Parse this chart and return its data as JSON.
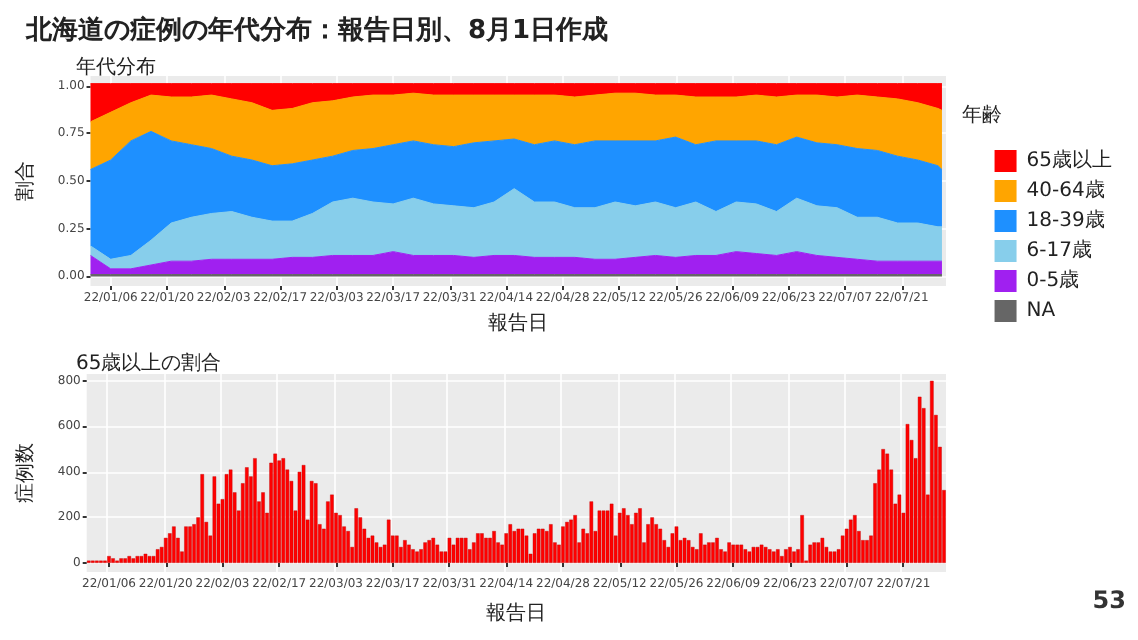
{
  "chart_data": [
    {
      "type": "area",
      "title": "北海道の症例の年代分布：報告日別、8月1日作成",
      "subtitle": "年代分布",
      "xlabel": "報告日",
      "ylabel": "割合",
      "legend_title": "年齢",
      "stacked": true,
      "grid": true,
      "legend": "right",
      "x": [
        "--01-01",
        "--01-06",
        "--01-11",
        "--01-16",
        "--01-21",
        "--01-26",
        "--01-31",
        "--02-05",
        "--02-10",
        "--02-15",
        "--02-20",
        "--02-25",
        "--03-02",
        "--03-07",
        "--03-12",
        "--03-17",
        "--03-22",
        "--03-27",
        "--04-01",
        "--04-06",
        "--04-11",
        "--04-16",
        "--04-21",
        "--04-26",
        "--05-01",
        "--05-06",
        "--05-11",
        "--05-16",
        "--05-21",
        "--05-26",
        "--05-31",
        "--06-05",
        "--06-10",
        "--06-15",
        "--06-20",
        "--06-25",
        "--06-30",
        "--07-05",
        "--07-10",
        "--07-15",
        "--07-20",
        "--07-25",
        "--07-30",
        "--07-31"
      ],
      "xlim": [
        "--01-01",
        "--08-01"
      ],
      "xticks": [
        {
          "value": "--01-06",
          "label": "22/01/06"
        },
        {
          "value": "--01-20",
          "label": "22/01/20"
        },
        {
          "value": "--02-03",
          "label": "22/02/03"
        },
        {
          "value": "--02-17",
          "label": "22/02/17"
        },
        {
          "value": "--03-03",
          "label": "22/03/03"
        },
        {
          "value": "--03-17",
          "label": "22/03/17"
        },
        {
          "value": "--03-31",
          "label": "22/03/31"
        },
        {
          "value": "--04-14",
          "label": "22/04/14"
        },
        {
          "value": "--04-28",
          "label": "22/04/28"
        },
        {
          "value": "--05-12",
          "label": "22/05/12"
        },
        {
          "value": "--05-26",
          "label": "22/05/26"
        },
        {
          "value": "--06-09",
          "label": "22/06/09"
        },
        {
          "value": "--06-23",
          "label": "22/06/23"
        },
        {
          "value": "--07-07",
          "label": "22/07/07"
        },
        {
          "value": "--07-21",
          "label": "22/07/21"
        }
      ],
      "ylim": [
        -0.05,
        1.05
      ],
      "yticks": [
        {
          "value": 0,
          "label": "0.00"
        },
        {
          "value": 0.25,
          "label": "0.25"
        },
        {
          "value": 0.5,
          "label": "0.50"
        },
        {
          "value": 0.75,
          "label": "0.75"
        },
        {
          "value": 1,
          "label": "1.00"
        }
      ],
      "series": [
        {
          "name": "NA",
          "color": "#666666",
          "values": [
            0.01,
            0.01,
            0.01,
            0.01,
            0.01,
            0.01,
            0.01,
            0.01,
            0.01,
            0.01,
            0.01,
            0.01,
            0.01,
            0.01,
            0.01,
            0.01,
            0.01,
            0.01,
            0.01,
            0.01,
            0.01,
            0.01,
            0.01,
            0.01,
            0.01,
            0.01,
            0.01,
            0.01,
            0.01,
            0.01,
            0.01,
            0.01,
            0.01,
            0.01,
            0.01,
            0.01,
            0.01,
            0.01,
            0.01,
            0.01,
            0.01,
            0.01,
            0.01,
            0.01
          ]
        },
        {
          "name": "0-5歳",
          "color": "#a020f0",
          "values": [
            0.1,
            0.03,
            0.03,
            0.05,
            0.07,
            0.07,
            0.08,
            0.08,
            0.08,
            0.08,
            0.09,
            0.09,
            0.1,
            0.1,
            0.1,
            0.12,
            0.1,
            0.1,
            0.1,
            0.09,
            0.1,
            0.1,
            0.09,
            0.09,
            0.09,
            0.08,
            0.08,
            0.09,
            0.1,
            0.09,
            0.1,
            0.1,
            0.12,
            0.11,
            0.1,
            0.12,
            0.1,
            0.09,
            0.08,
            0.07,
            0.07,
            0.07,
            0.07,
            0.07
          ]
        },
        {
          "name": "6-17歳",
          "color": "#87ceeb",
          "values": [
            0.05,
            0.05,
            0.07,
            0.13,
            0.2,
            0.23,
            0.24,
            0.25,
            0.22,
            0.2,
            0.19,
            0.23,
            0.28,
            0.3,
            0.28,
            0.25,
            0.3,
            0.27,
            0.26,
            0.26,
            0.28,
            0.35,
            0.29,
            0.29,
            0.26,
            0.27,
            0.3,
            0.27,
            0.28,
            0.26,
            0.28,
            0.23,
            0.26,
            0.26,
            0.23,
            0.28,
            0.26,
            0.26,
            0.22,
            0.23,
            0.2,
            0.2,
            0.18,
            0.18
          ]
        },
        {
          "name": "18-39歳",
          "color": "#1e90ff",
          "values": [
            0.4,
            0.52,
            0.6,
            0.57,
            0.43,
            0.38,
            0.34,
            0.29,
            0.3,
            0.29,
            0.3,
            0.28,
            0.24,
            0.25,
            0.28,
            0.31,
            0.3,
            0.31,
            0.31,
            0.34,
            0.32,
            0.26,
            0.3,
            0.32,
            0.33,
            0.35,
            0.32,
            0.34,
            0.32,
            0.37,
            0.3,
            0.37,
            0.32,
            0.33,
            0.35,
            0.32,
            0.33,
            0.33,
            0.36,
            0.35,
            0.35,
            0.33,
            0.32,
            0.3
          ]
        },
        {
          "name": "40-64歳",
          "color": "#ffa500",
          "values": [
            0.25,
            0.25,
            0.2,
            0.19,
            0.23,
            0.25,
            0.28,
            0.3,
            0.3,
            0.29,
            0.29,
            0.3,
            0.29,
            0.28,
            0.28,
            0.26,
            0.25,
            0.26,
            0.27,
            0.25,
            0.24,
            0.23,
            0.26,
            0.24,
            0.25,
            0.24,
            0.25,
            0.25,
            0.24,
            0.22,
            0.25,
            0.23,
            0.23,
            0.24,
            0.25,
            0.22,
            0.25,
            0.25,
            0.28,
            0.28,
            0.3,
            0.3,
            0.3,
            0.31
          ]
        },
        {
          "name": "65歳以上",
          "color": "#ff0000",
          "values": [
            0.2,
            0.15,
            0.1,
            0.06,
            0.07,
            0.07,
            0.06,
            0.08,
            0.1,
            0.14,
            0.13,
            0.1,
            0.09,
            0.07,
            0.06,
            0.06,
            0.05,
            0.06,
            0.06,
            0.06,
            0.06,
            0.06,
            0.06,
            0.06,
            0.07,
            0.06,
            0.05,
            0.05,
            0.06,
            0.06,
            0.07,
            0.07,
            0.07,
            0.06,
            0.07,
            0.06,
            0.06,
            0.07,
            0.06,
            0.07,
            0.08,
            0.1,
            0.13,
            0.14
          ]
        }
      ]
    },
    {
      "type": "bar",
      "title": "65歳以上の割合",
      "xlabel": "報告日",
      "ylabel": "症例数",
      "grid": true,
      "annotations": [
        "53"
      ],
      "categories": [
        null,
        null,
        null,
        null,
        null,
        "22/01/06",
        null,
        null,
        null,
        null,
        null,
        null,
        null,
        null,
        null,
        null,
        null,
        null,
        null,
        "22/01/20",
        null,
        null,
        null,
        null,
        null,
        null,
        null,
        null,
        null,
        null,
        null,
        null,
        null,
        "22/02/03",
        null,
        null,
        null,
        null,
        null,
        null,
        null,
        null,
        null,
        null,
        null,
        null,
        null,
        "22/02/17",
        null,
        null,
        null,
        null,
        null,
        null,
        null,
        null,
        null,
        null,
        null,
        null,
        null,
        "22/03/03",
        null,
        null,
        null,
        null,
        null,
        null,
        null,
        null,
        null,
        null,
        null,
        null,
        null,
        "22/03/17",
        null,
        null,
        null,
        null,
        null,
        null,
        null,
        null,
        null,
        null,
        null,
        null,
        null,
        "22/03/31",
        null,
        null,
        null,
        null,
        null,
        null,
        null,
        null,
        null,
        null,
        null,
        null,
        null,
        "22/04/14",
        null,
        null,
        null,
        null,
        null,
        null,
        null,
        null,
        null,
        null,
        null,
        null,
        null,
        "22/04/28",
        null,
        null,
        null,
        null,
        null,
        null,
        null,
        null,
        null,
        null,
        null,
        null,
        null,
        "22/05/12",
        null,
        null,
        null,
        null,
        null,
        null,
        null,
        null,
        null,
        null,
        null,
        null,
        null,
        "22/05/26",
        null,
        null,
        null,
        null,
        null,
        null,
        null,
        null,
        null,
        null,
        null,
        null,
        null,
        "22/06/09",
        null,
        null,
        null,
        null,
        null,
        null,
        null,
        null,
        null,
        null,
        null,
        null,
        null,
        "22/06/23",
        null,
        null,
        null,
        null,
        null,
        null,
        null,
        null,
        null,
        null,
        null,
        null,
        null,
        "22/07/07",
        null,
        null,
        null,
        null,
        null,
        null,
        null,
        null,
        null,
        null,
        null,
        null,
        null,
        "22/07/21",
        null,
        null,
        null,
        null,
        null,
        null,
        null,
        null,
        null,
        null
      ],
      "ylim": [
        -40,
        830
      ],
      "yticks": [
        0,
        200,
        400,
        600,
        800
      ],
      "series": [
        {
          "color": "#ff0000",
          "values": [
            10,
            10,
            10,
            10,
            10,
            30,
            20,
            10,
            20,
            20,
            30,
            20,
            30,
            30,
            40,
            30,
            30,
            60,
            70,
            110,
            130,
            160,
            110,
            50,
            160,
            160,
            170,
            200,
            390,
            180,
            120,
            380,
            260,
            280,
            390,
            410,
            310,
            230,
            350,
            420,
            380,
            460,
            270,
            310,
            220,
            440,
            480,
            450,
            460,
            410,
            360,
            230,
            400,
            430,
            190,
            360,
            350,
            170,
            150,
            270,
            300,
            220,
            210,
            160,
            140,
            70,
            240,
            200,
            150,
            110,
            120,
            90,
            70,
            80,
            190,
            120,
            120,
            70,
            100,
            80,
            60,
            50,
            60,
            90,
            100,
            110,
            80,
            50,
            50,
            110,
            80,
            110,
            110,
            110,
            60,
            90,
            130,
            130,
            110,
            110,
            140,
            90,
            80,
            130,
            170,
            140,
            150,
            150,
            120,
            40,
            130,
            150,
            150,
            140,
            170,
            90,
            80,
            160,
            180,
            190,
            210,
            90,
            150,
            130,
            270,
            140,
            230,
            230,
            230,
            260,
            120,
            220,
            240,
            210,
            170,
            220,
            240,
            90,
            170,
            200,
            170,
            150,
            100,
            70,
            130,
            160,
            100,
            110,
            100,
            70,
            60,
            130,
            80,
            90,
            90,
            110,
            60,
            50,
            90,
            80,
            80,
            80,
            60,
            50,
            70,
            70,
            80,
            70,
            60,
            50,
            60,
            30,
            60,
            70,
            50,
            60,
            210,
            10,
            80,
            90,
            90,
            110,
            70,
            50,
            50,
            60,
            120,
            150,
            190,
            210,
            140,
            100,
            100,
            120,
            350,
            410,
            500,
            480,
            410,
            260,
            300,
            220,
            610,
            540,
            460,
            730,
            680,
            300,
            800,
            650,
            510,
            320
          ]
        }
      ]
    }
  ]
}
